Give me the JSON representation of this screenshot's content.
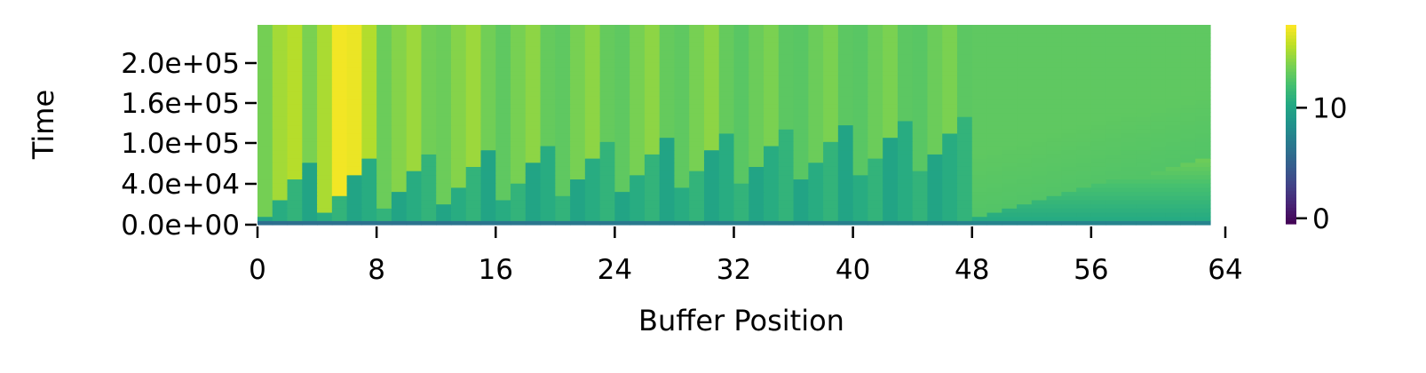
{
  "chart_data": {
    "type": "heatmap",
    "title": "",
    "xlabel": "Buffer Position",
    "ylabel": "Time",
    "xlim": [
      0,
      64
    ],
    "ylim": [
      0,
      240000
    ],
    "x_ticks": [
      "0",
      "8",
      "16",
      "24",
      "32",
      "40",
      "48",
      "56",
      "64"
    ],
    "y_ticks": [
      "0.0e+00",
      "4.0e+04",
      "1.0e+05",
      "1.6e+05",
      "2.0e+05"
    ],
    "colorbar": {
      "colormap": "viridis",
      "range": [
        -0.5,
        17.5
      ],
      "ticks": [
        "0",
        "10"
      ]
    },
    "rows": 48,
    "columns": 64,
    "grid": false,
    "description_of_values": "value at each buffer position ramps up over time to a plateau; early positions (1-7) reach the highest values (~15-17) near time 2.0e+05, positions 48-63 plateau near ~12-13"
  }
}
